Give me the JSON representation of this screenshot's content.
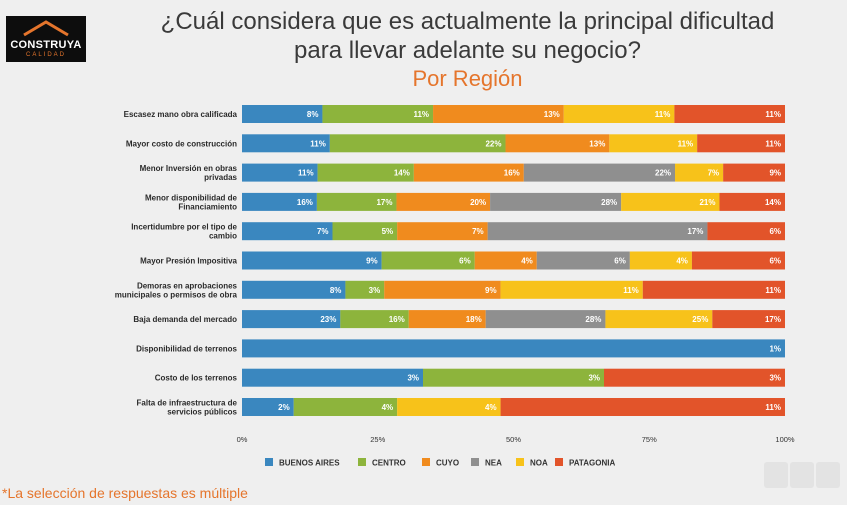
{
  "logo": {
    "brand": "CONSTRUYA",
    "tagline": "CALIDAD"
  },
  "header": {
    "title_line1": "¿Cuál considera que es actualmente la principal dificultad",
    "title_line2": "para llevar adelante su negocio?",
    "subtitle": "Por Región"
  },
  "footnote": "*La selección de respuestas es múltiple",
  "chart_data": {
    "type": "bar",
    "orientation": "horizontal",
    "stacked": true,
    "normalized": true,
    "xlim": [
      0,
      100
    ],
    "xticks": [
      "0%",
      "25%",
      "50%",
      "75%",
      "100%"
    ],
    "legend_position": "bottom",
    "categories": [
      [
        "Escasez mano obra calificada"
      ],
      [
        "Mayor costo de construcción"
      ],
      [
        "Menor Inversión en obras",
        "privadas"
      ],
      [
        "Menor disponibilidad de",
        "Financiamiento"
      ],
      [
        "Incertidumbre por el tipo de",
        "cambio"
      ],
      [
        "Mayor Presión Impositiva"
      ],
      [
        "Demoras en aprobaciones",
        "municipales o permisos de obra"
      ],
      [
        "Baja demanda del mercado"
      ],
      [
        "Disponibilidad de terrenos"
      ],
      [
        "Costo de los terrenos"
      ],
      [
        "Falta de infraestructura de",
        "servicios públicos"
      ]
    ],
    "series": [
      {
        "name": "BUENOS AIRES",
        "color": "#3a87bf",
        "values": [
          8,
          11,
          11,
          16,
          7,
          9,
          8,
          23,
          1,
          3,
          2
        ]
      },
      {
        "name": "CENTRO",
        "color": "#8db43c",
        "values": [
          11,
          22,
          14,
          17,
          5,
          6,
          3,
          16,
          0,
          3,
          4
        ]
      },
      {
        "name": "CUYO",
        "color": "#f08b1e",
        "values": [
          13,
          13,
          16,
          20,
          7,
          4,
          9,
          18,
          0,
          0,
          0
        ]
      },
      {
        "name": "NEA",
        "color": "#8f8f8f",
        "values": [
          0,
          0,
          22,
          28,
          17,
          6,
          0,
          28,
          0,
          0,
          0
        ]
      },
      {
        "name": "NOA",
        "color": "#f7c21a",
        "values": [
          11,
          11,
          7,
          21,
          0,
          4,
          11,
          25,
          0,
          0,
          4
        ]
      },
      {
        "name": "PATAGONIA",
        "color": "#e2542a",
        "values": [
          11,
          11,
          9,
          14,
          6,
          6,
          11,
          17,
          0,
          3,
          11
        ]
      }
    ]
  }
}
